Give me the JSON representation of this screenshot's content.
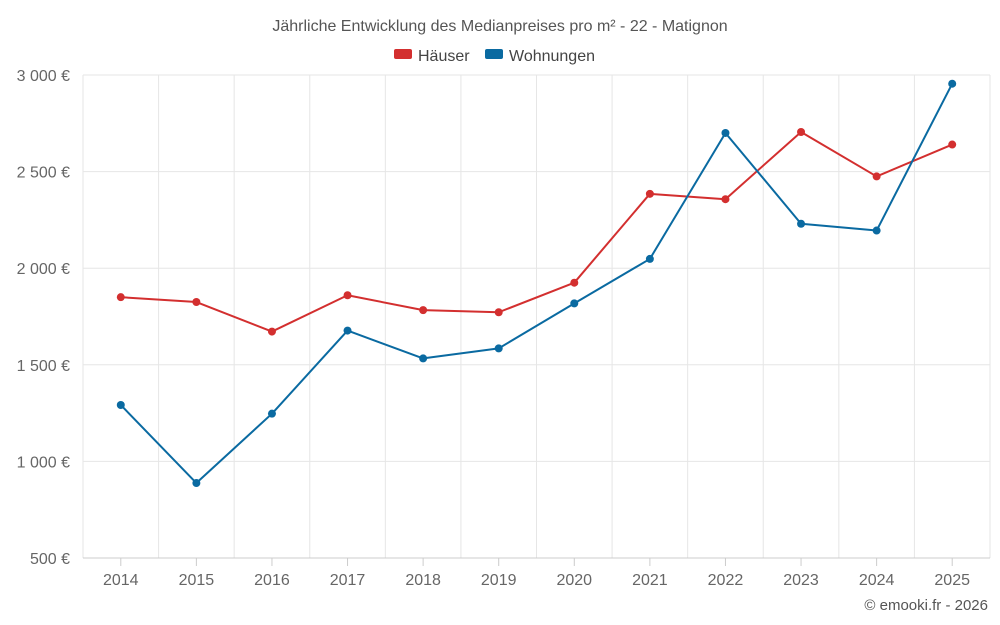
{
  "chart_data": {
    "type": "line",
    "title": "Jährliche Entwicklung des Medianpreises pro m² - 22 - Matignon",
    "categories": [
      "2014",
      "2015",
      "2016",
      "2017",
      "2018",
      "2019",
      "2020",
      "2021",
      "2022",
      "2023",
      "2024",
      "2025"
    ],
    "series": [
      {
        "name": "Häuser",
        "color": "#d32f2f",
        "values": [
          1850,
          1825,
          1672,
          1860,
          1783,
          1772,
          1925,
          2385,
          2357,
          2705,
          2475,
          2640
        ]
      },
      {
        "name": "Wohnungen",
        "color": "#0a6aa1",
        "values": [
          1292,
          888,
          1247,
          1677,
          1533,
          1585,
          1818,
          2048,
          2700,
          2230,
          2195,
          2955
        ]
      }
    ],
    "y_ticks": [
      {
        "value": 500,
        "label": "500 €"
      },
      {
        "value": 1000,
        "label": "1 000 €"
      },
      {
        "value": 1500,
        "label": "1 500 €"
      },
      {
        "value": 2000,
        "label": "2 000 €"
      },
      {
        "value": 2500,
        "label": "2 500 €"
      },
      {
        "value": 3000,
        "label": "3 000 €"
      }
    ],
    "ylim": [
      500,
      3000
    ],
    "xlabel": "",
    "ylabel": "",
    "legend": "top-center",
    "grid": true
  },
  "credit": "© emooki.fr - 2026"
}
